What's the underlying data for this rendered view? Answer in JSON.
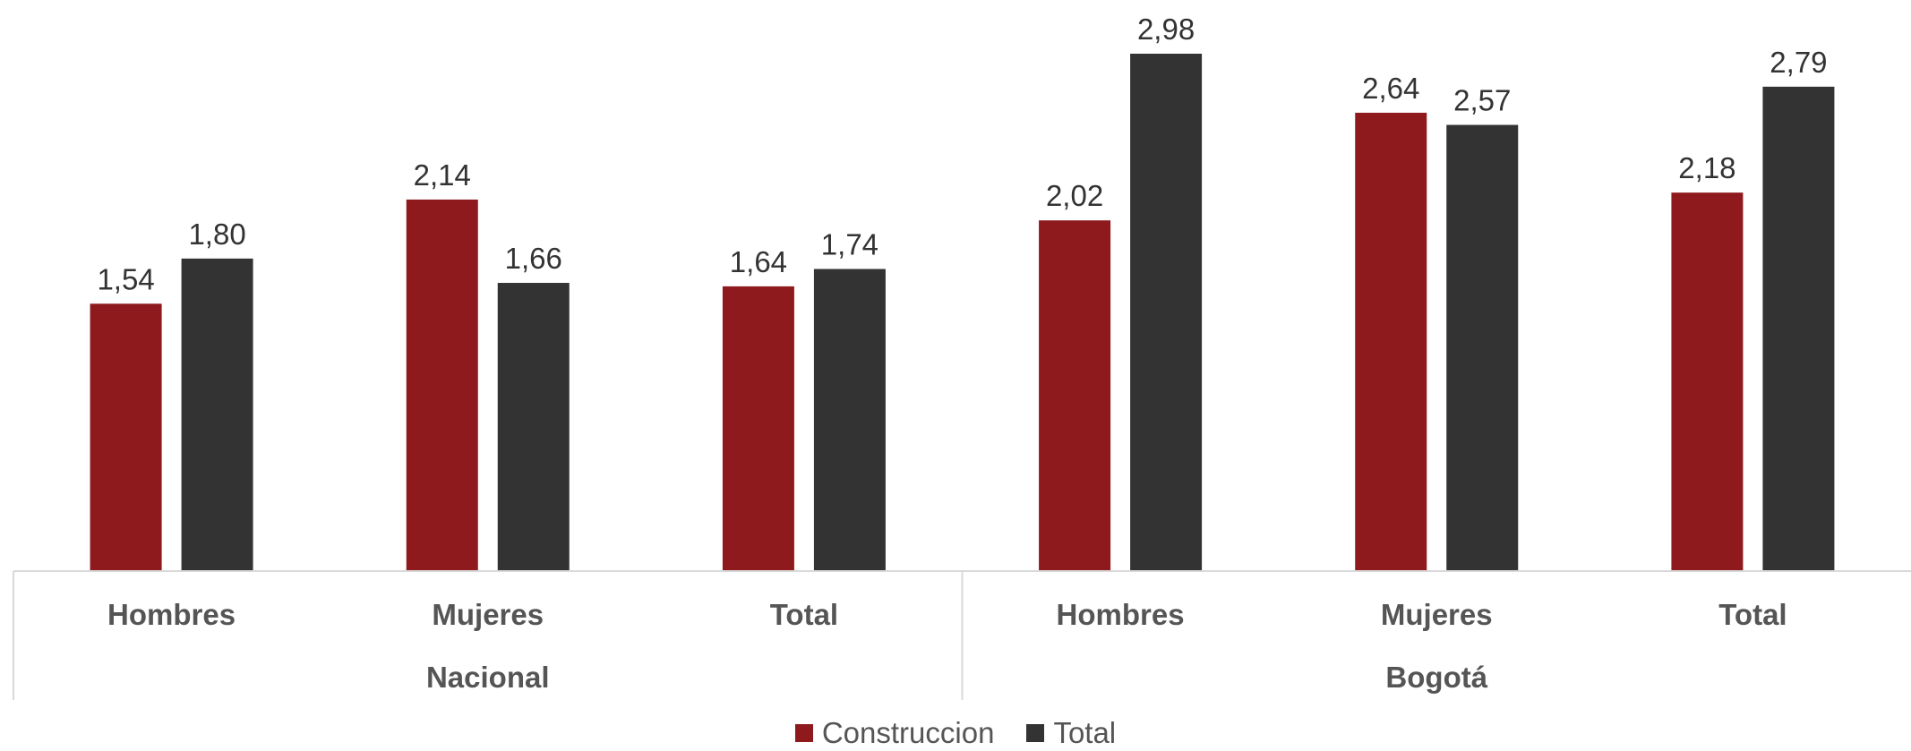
{
  "chart_data": {
    "type": "bar",
    "groups": [
      {
        "label": "Nacional",
        "categories": [
          "Hombres",
          "Mujeres",
          "Total"
        ]
      },
      {
        "label": "Bogotá",
        "categories": [
          "Hombres",
          "Mujeres",
          "Total"
        ]
      }
    ],
    "series": [
      {
        "name": "Construccion",
        "color": "#8E1A1E",
        "values": [
          1.54,
          2.14,
          1.64,
          2.02,
          2.64,
          2.18
        ],
        "labels": [
          "1,54",
          "2,14",
          "1,64",
          "2,02",
          "2,64",
          "2,18"
        ]
      },
      {
        "name": "Total",
        "color": "#333333",
        "values": [
          1.8,
          1.66,
          1.74,
          2.98,
          2.57,
          2.79
        ],
        "labels": [
          "1,80",
          "1,66",
          "1,74",
          "2,98",
          "2,57",
          "2,79"
        ]
      }
    ],
    "ylim": [
      0,
      2.98
    ],
    "grid": false,
    "legend_position": "bottom"
  }
}
